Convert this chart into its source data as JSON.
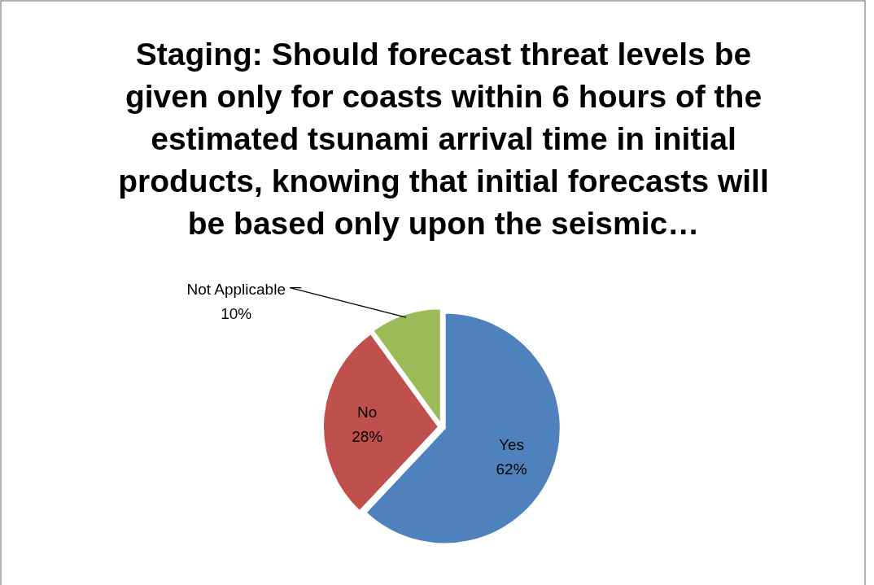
{
  "chart_data": {
    "type": "pie",
    "title": "Staging: Should forecast threat levels be given only for coasts within 6 hours of the estimated tsunami arrival time in initial products, knowing that initial forecasts will be based only upon the seismic…",
    "categories": [
      "Yes",
      "No",
      "Not Applicable"
    ],
    "values": [
      62,
      28,
      10
    ],
    "colors": [
      "#4f81bd",
      "#c0504d",
      "#9bbb59"
    ],
    "value_labels": [
      "62%",
      "28%",
      "10%"
    ]
  }
}
